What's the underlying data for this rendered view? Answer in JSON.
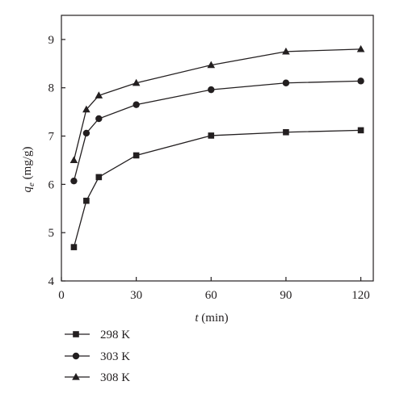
{
  "chart_data": {
    "type": "line",
    "title": "",
    "xlabel_var": "t",
    "xlabel_unit": " (min)",
    "ylabel_var": "q",
    "ylabel_sub": "e",
    "ylabel_unit": " (mg/g)",
    "xlim": [
      0,
      125
    ],
    "ylim": [
      4,
      9.5
    ],
    "xticks": [
      0,
      30,
      60,
      90,
      120
    ],
    "yticks": [
      4,
      5,
      6,
      7,
      8,
      9
    ],
    "grid": false,
    "legend_position": "bottom-left",
    "series": [
      {
        "name": "298 K",
        "marker": "square",
        "x": [
          5,
          10,
          15,
          30,
          60,
          90,
          120
        ],
        "y": [
          4.7,
          5.66,
          6.15,
          6.6,
          7.01,
          7.08,
          7.12
        ]
      },
      {
        "name": "303 K",
        "marker": "circle",
        "x": [
          5,
          10,
          15,
          30,
          60,
          90,
          120
        ],
        "y": [
          6.07,
          7.06,
          7.36,
          7.65,
          7.96,
          8.1,
          8.14
        ]
      },
      {
        "name": "308 K",
        "marker": "triangle",
        "x": [
          5,
          10,
          15,
          30,
          60,
          90,
          120
        ],
        "y": [
          6.5,
          7.55,
          7.84,
          8.1,
          8.47,
          8.75,
          8.8
        ]
      }
    ],
    "colors": {
      "line": "#231f20",
      "axis": "#231f20"
    }
  }
}
